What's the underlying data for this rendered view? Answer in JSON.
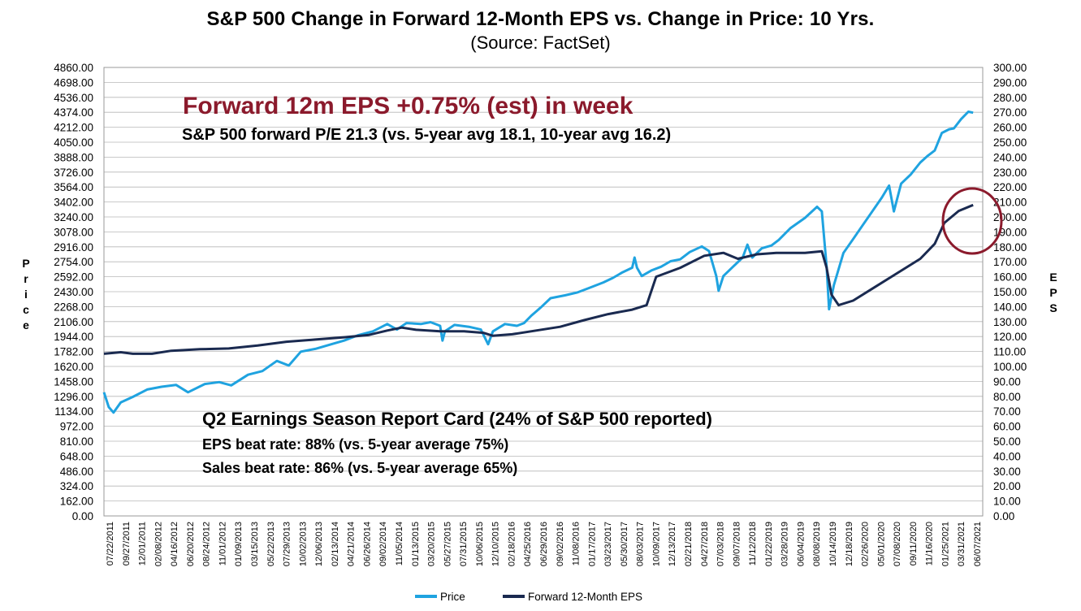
{
  "chart_data": {
    "type": "line",
    "title": "S&P 500 Change in Forward 12-Month EPS vs. Change in Price: 10 Yrs.",
    "subtitle": "(Source: FactSet)",
    "ylabel_left": "Price",
    "ylabel_right": "EPS",
    "ylim_left": [
      0,
      4860
    ],
    "ylim_right": [
      0,
      300
    ],
    "y_left_ticks": [
      "0.00",
      "162.00",
      "324.00",
      "486.00",
      "648.00",
      "810.00",
      "972.00",
      "1134.00",
      "1296.00",
      "1458.00",
      "1620.00",
      "1782.00",
      "1944.00",
      "2106.00",
      "2268.00",
      "2430.00",
      "2592.00",
      "2754.00",
      "2916.00",
      "3078.00",
      "3240.00",
      "3402.00",
      "3564.00",
      "3726.00",
      "3888.00",
      "4050.00",
      "4212.00",
      "4374.00",
      "4536.00",
      "4698.00",
      "4860.00"
    ],
    "y_right_ticks": [
      "0.00",
      "10.00",
      "20.00",
      "30.00",
      "40.00",
      "50.00",
      "60.00",
      "70.00",
      "80.00",
      "90.00",
      "100.00",
      "110.00",
      "120.00",
      "130.00",
      "140.00",
      "150.00",
      "160.00",
      "170.00",
      "180.00",
      "190.00",
      "200.00",
      "210.00",
      "220.00",
      "230.00",
      "240.00",
      "250.00",
      "260.00",
      "270.00",
      "280.00",
      "290.00",
      "300.00"
    ],
    "x_ticks": [
      "07/22/2011",
      "09/27/2011",
      "12/01/2011",
      "02/08/2012",
      "04/16/2012",
      "06/20/2012",
      "08/24/2012",
      "11/01/2012",
      "01/09/2013",
      "03/15/2013",
      "05/22/2013",
      "07/29/2013",
      "10/02/2013",
      "12/06/2013",
      "02/13/2014",
      "04/21/2014",
      "06/26/2014",
      "09/02/2014",
      "11/05/2014",
      "01/13/2015",
      "03/20/2015",
      "05/27/2015",
      "07/31/2015",
      "10/06/2015",
      "12/10/2015",
      "02/18/2016",
      "04/25/2016",
      "06/29/2016",
      "09/02/2016",
      "11/08/2016",
      "01/17/2017",
      "03/23/2017",
      "05/30/2017",
      "08/03/2017",
      "10/09/2017",
      "12/13/2017",
      "02/21/2018",
      "04/27/2018",
      "07/03/2018",
      "09/07/2018",
      "11/12/2018",
      "01/22/2019",
      "03/28/2019",
      "06/04/2019",
      "08/08/2019",
      "10/14/2019",
      "12/18/2019",
      "02/26/2020",
      "05/01/2020",
      "07/08/2020",
      "09/11/2020",
      "11/16/2020",
      "01/25/2021",
      "03/31/2021",
      "06/07/2021"
    ],
    "x_range": [
      "07/22/2011",
      "07/22/2021"
    ],
    "series": [
      {
        "name": "Price",
        "color": "#1fa3e0",
        "axis": "left",
        "points": [
          [
            0.0,
            1340
          ],
          [
            0.1,
            1180
          ],
          [
            0.2,
            1120
          ],
          [
            0.35,
            1230
          ],
          [
            0.6,
            1290
          ],
          [
            0.9,
            1370
          ],
          [
            1.2,
            1400
          ],
          [
            1.5,
            1420
          ],
          [
            1.75,
            1340
          ],
          [
            2.1,
            1430
          ],
          [
            2.4,
            1450
          ],
          [
            2.65,
            1415
          ],
          [
            3.0,
            1530
          ],
          [
            3.3,
            1570
          ],
          [
            3.6,
            1680
          ],
          [
            3.85,
            1630
          ],
          [
            4.1,
            1780
          ],
          [
            4.4,
            1810
          ],
          [
            4.8,
            1870
          ],
          [
            5.0,
            1900
          ],
          [
            5.3,
            1960
          ],
          [
            5.6,
            2000
          ],
          [
            5.9,
            2080
          ],
          [
            6.1,
            2020
          ],
          [
            6.3,
            2090
          ],
          [
            6.6,
            2080
          ],
          [
            6.8,
            2100
          ],
          [
            7.0,
            2060
          ],
          [
            7.05,
            1900
          ],
          [
            7.1,
            2000
          ],
          [
            7.3,
            2070
          ],
          [
            7.6,
            2050
          ],
          [
            7.85,
            2020
          ],
          [
            8.0,
            1860
          ],
          [
            8.1,
            2000
          ],
          [
            8.35,
            2080
          ],
          [
            8.6,
            2060
          ],
          [
            8.75,
            2090
          ],
          [
            8.9,
            2170
          ],
          [
            9.1,
            2260
          ],
          [
            9.3,
            2360
          ],
          [
            9.6,
            2390
          ],
          [
            9.85,
            2420
          ],
          [
            10.1,
            2470
          ],
          [
            10.4,
            2530
          ],
          [
            10.6,
            2580
          ],
          [
            10.8,
            2640
          ],
          [
            11.0,
            2690
          ],
          [
            11.05,
            2800
          ],
          [
            11.1,
            2690
          ],
          [
            11.2,
            2600
          ],
          [
            11.4,
            2660
          ],
          [
            11.6,
            2700
          ],
          [
            11.8,
            2760
          ],
          [
            12.0,
            2780
          ],
          [
            12.2,
            2860
          ],
          [
            12.45,
            2920
          ],
          [
            12.6,
            2870
          ],
          [
            12.75,
            2600
          ],
          [
            12.8,
            2440
          ],
          [
            12.9,
            2600
          ],
          [
            13.1,
            2700
          ],
          [
            13.3,
            2800
          ],
          [
            13.4,
            2940
          ],
          [
            13.5,
            2800
          ],
          [
            13.7,
            2900
          ],
          [
            13.9,
            2930
          ],
          [
            14.05,
            2990
          ],
          [
            14.3,
            3120
          ],
          [
            14.6,
            3230
          ],
          [
            14.85,
            3350
          ],
          [
            14.95,
            3300
          ],
          [
            15.05,
            2700
          ],
          [
            15.1,
            2240
          ],
          [
            15.2,
            2500
          ],
          [
            15.4,
            2850
          ],
          [
            15.6,
            3000
          ],
          [
            15.8,
            3150
          ],
          [
            16.0,
            3300
          ],
          [
            16.2,
            3450
          ],
          [
            16.35,
            3580
          ],
          [
            16.45,
            3300
          ],
          [
            16.6,
            3600
          ],
          [
            16.8,
            3700
          ],
          [
            17.0,
            3830
          ],
          [
            17.15,
            3900
          ],
          [
            17.3,
            3960
          ],
          [
            17.45,
            4150
          ],
          [
            17.6,
            4190
          ],
          [
            17.7,
            4200
          ],
          [
            17.85,
            4300
          ],
          [
            18.0,
            4380
          ],
          [
            18.1,
            4370
          ]
        ]
      },
      {
        "name": "Forward 12-Month EPS",
        "color": "#1a2a50",
        "axis": "right",
        "points": [
          [
            0.0,
            108.5
          ],
          [
            0.35,
            109.5
          ],
          [
            0.6,
            108.5
          ],
          [
            1.0,
            108.5
          ],
          [
            1.4,
            110.5
          ],
          [
            1.7,
            111
          ],
          [
            2.0,
            111.5
          ],
          [
            2.6,
            112
          ],
          [
            3.2,
            114
          ],
          [
            3.8,
            116.5
          ],
          [
            4.4,
            118
          ],
          [
            5.0,
            119.5
          ],
          [
            5.5,
            121
          ],
          [
            5.9,
            124
          ],
          [
            6.2,
            126
          ],
          [
            6.5,
            124.5
          ],
          [
            7.0,
            123.5
          ],
          [
            7.5,
            123.5
          ],
          [
            7.9,
            122.5
          ],
          [
            8.1,
            120.5
          ],
          [
            8.5,
            121.5
          ],
          [
            9.0,
            124
          ],
          [
            9.5,
            126.5
          ],
          [
            10.0,
            131
          ],
          [
            10.5,
            135
          ],
          [
            11.0,
            138
          ],
          [
            11.3,
            141
          ],
          [
            11.5,
            160
          ],
          [
            12.0,
            166
          ],
          [
            12.5,
            174
          ],
          [
            12.9,
            176
          ],
          [
            13.2,
            172
          ],
          [
            13.6,
            175
          ],
          [
            14.0,
            176
          ],
          [
            14.6,
            176
          ],
          [
            14.95,
            177
          ],
          [
            15.05,
            166
          ],
          [
            15.15,
            148
          ],
          [
            15.3,
            141
          ],
          [
            15.6,
            144
          ],
          [
            16.0,
            152
          ],
          [
            16.5,
            162
          ],
          [
            17.0,
            172
          ],
          [
            17.3,
            182
          ],
          [
            17.5,
            196
          ],
          [
            17.8,
            204
          ],
          [
            18.1,
            208
          ]
        ]
      }
    ],
    "legend": [
      "Price",
      "Forward 12-Month EPS"
    ],
    "legend_position": "bottom-center",
    "annotations": [
      "Forward 12m EPS +0.75% (est) in week",
      "S&P 500 forward P/E 21.3 (vs. 5-year avg 18.1, 10-year avg 16.2)",
      "Q2 Earnings Season Report Card (24% of S&P 500 reported)",
      "EPS beat rate: 88% (vs. 5-year average 75%)",
      "Sales beat rate: 86% (vs. 5-year average 65%)"
    ]
  },
  "colors": {
    "price": "#1fa3e0",
    "eps": "#1a2a50",
    "highlight": "#8b1a2c",
    "grid": "#b8b8b8"
  }
}
